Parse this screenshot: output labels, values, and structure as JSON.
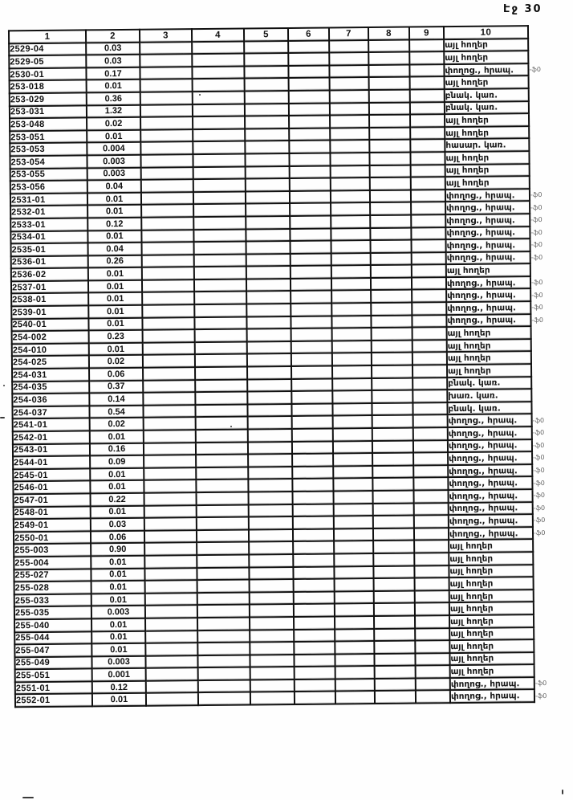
{
  "page": {
    "label": "Էջ 30"
  },
  "colors": {
    "background": "#fefefe",
    "ink": "#101010",
    "grid_border": "#101010",
    "margin_note": "#4a4a4a"
  },
  "table": {
    "columns": [
      "1",
      "2",
      "3",
      "4",
      "5",
      "6",
      "7",
      "8",
      "9",
      "10"
    ],
    "rows": [
      {
        "code": "2529-04",
        "value": "0.03",
        "land_use": "այլ հողեր",
        "margin_note": ""
      },
      {
        "code": "2529-05",
        "value": "0.03",
        "land_use": "այլ հողեր",
        "margin_note": ""
      },
      {
        "code": "2530-01",
        "value": "0.17",
        "land_use": "փողոց., հրապ.",
        "margin_note": "-ֆ0"
      },
      {
        "code": "253-018",
        "value": "0.01",
        "land_use": "այլ հողեր",
        "margin_note": ""
      },
      {
        "code": "253-029",
        "value": "0.36",
        "land_use": "բնակ. կառ.",
        "margin_note": ""
      },
      {
        "code": "253-031",
        "value": "1.32",
        "land_use": "բնակ. կառ.",
        "margin_note": ""
      },
      {
        "code": "253-048",
        "value": "0.02",
        "land_use": "այլ հողեր",
        "margin_note": ""
      },
      {
        "code": "253-051",
        "value": "0.01",
        "land_use": "այլ հողեր",
        "margin_note": ""
      },
      {
        "code": "253-053",
        "value": "0.004",
        "land_use": "հասար. կառ.",
        "margin_note": ""
      },
      {
        "code": "253-054",
        "value": "0.003",
        "land_use": "այլ հողեր",
        "margin_note": ""
      },
      {
        "code": "253-055",
        "value": "0.003",
        "land_use": "այլ հողեր",
        "margin_note": ""
      },
      {
        "code": "253-056",
        "value": "0.04",
        "land_use": "այլ հողեր",
        "margin_note": ""
      },
      {
        "code": "2531-01",
        "value": "0.01",
        "land_use": "փողոց., հրապ.",
        "margin_note": "-ֆ0"
      },
      {
        "code": "2532-01",
        "value": "0.01",
        "land_use": "փողոց., հրապ.",
        "margin_note": "-ֆ0"
      },
      {
        "code": "2533-01",
        "value": "0.12",
        "land_use": "փողոց., հրապ.",
        "margin_note": "-ֆ0"
      },
      {
        "code": "2534-01",
        "value": "0.01",
        "land_use": "փողոց., հրապ.",
        "margin_note": "-ֆ0"
      },
      {
        "code": "2535-01",
        "value": "0.04",
        "land_use": "փողոց., հրապ.",
        "margin_note": "-ֆ0"
      },
      {
        "code": "2536-01",
        "value": "0.26",
        "land_use": "փողոց., հրապ.",
        "margin_note": "-ֆ0"
      },
      {
        "code": "2536-02",
        "value": "0.01",
        "land_use": "այլ հողեր",
        "margin_note": ""
      },
      {
        "code": "2537-01",
        "value": "0.01",
        "land_use": "փողոց., հրապ.",
        "margin_note": "-ֆ0"
      },
      {
        "code": "2538-01",
        "value": "0.01",
        "land_use": "փողոց., հրապ.",
        "margin_note": "-ֆ0"
      },
      {
        "code": "2539-01",
        "value": "0.01",
        "land_use": "փողոց., հրապ.",
        "margin_note": "-ֆ0"
      },
      {
        "code": "2540-01",
        "value": "0.01",
        "land_use": "փողոց., հրապ.",
        "margin_note": "-ֆ0"
      },
      {
        "code": "254-002",
        "value": "0.23",
        "land_use": "այլ հողեր",
        "margin_note": ""
      },
      {
        "code": "254-010",
        "value": "0.01",
        "land_use": "այլ հողեր",
        "margin_note": ""
      },
      {
        "code": "254-025",
        "value": "0.02",
        "land_use": "այլ հողեր",
        "margin_note": ""
      },
      {
        "code": "254-031",
        "value": "0.06",
        "land_use": "այլ հողեր",
        "margin_note": ""
      },
      {
        "code": "254-035",
        "value": "0.37",
        "land_use": "բնակ. կառ.",
        "margin_note": ""
      },
      {
        "code": "254-036",
        "value": "0.14",
        "land_use": "խառ. կառ.",
        "margin_note": ""
      },
      {
        "code": "254-037",
        "value": "0.54",
        "land_use": "բնակ. կառ.",
        "margin_note": ""
      },
      {
        "code": "2541-01",
        "value": "0.02",
        "land_use": "փողոց., հրապ.",
        "margin_note": "-ֆ0"
      },
      {
        "code": "2542-01",
        "value": "0.01",
        "land_use": "փողոց., հրապ.",
        "margin_note": "-ֆ0"
      },
      {
        "code": "2543-01",
        "value": "0.16",
        "land_use": "փողոց., հրապ.",
        "margin_note": "-ֆ0"
      },
      {
        "code": "2544-01",
        "value": "0.09",
        "land_use": "փողոց., հրապ.",
        "margin_note": "-ֆ0"
      },
      {
        "code": "2545-01",
        "value": "0.01",
        "land_use": "փողոց., հրապ.",
        "margin_note": "-ֆ0"
      },
      {
        "code": "2546-01",
        "value": "0.01",
        "land_use": "փողոց., հրապ.",
        "margin_note": "-ֆ0"
      },
      {
        "code": "2547-01",
        "value": "0.22",
        "land_use": "փողոց., հրապ.",
        "margin_note": "-ֆ0"
      },
      {
        "code": "2548-01",
        "value": "0.01",
        "land_use": "փողոց., հրապ.",
        "margin_note": "-ֆ0"
      },
      {
        "code": "2549-01",
        "value": "0.03",
        "land_use": "փողոց., հրապ.",
        "margin_note": "-ֆ0"
      },
      {
        "code": "2550-01",
        "value": "0.06",
        "land_use": "փողոց., հրապ.",
        "margin_note": "-ֆ0"
      },
      {
        "code": "255-003",
        "value": "0.90",
        "land_use": "այլ հողեր",
        "margin_note": ""
      },
      {
        "code": "255-004",
        "value": "0.01",
        "land_use": "այլ հողեր",
        "margin_note": ""
      },
      {
        "code": "255-027",
        "value": "0.01",
        "land_use": "այլ հողեր",
        "margin_note": ""
      },
      {
        "code": "255-028",
        "value": "0.01",
        "land_use": "այլ հողեր",
        "margin_note": ""
      },
      {
        "code": "255-033",
        "value": "0.01",
        "land_use": "այլ հողեր",
        "margin_note": ""
      },
      {
        "code": "255-035",
        "value": "0.003",
        "land_use": "այլ հողեր",
        "margin_note": ""
      },
      {
        "code": "255-040",
        "value": "0.01",
        "land_use": "այլ հողեր",
        "margin_note": ""
      },
      {
        "code": "255-044",
        "value": "0.01",
        "land_use": "այլ հողեր",
        "margin_note": ""
      },
      {
        "code": "255-047",
        "value": "0.01",
        "land_use": "այլ հողեր",
        "margin_note": ""
      },
      {
        "code": "255-049",
        "value": "0.003",
        "land_use": "այլ հողեր",
        "margin_note": ""
      },
      {
        "code": "255-051",
        "value": "0.001",
        "land_use": "այլ հողեր",
        "margin_note": ""
      },
      {
        "code": "2551-01",
        "value": "0.12",
        "land_use": "փողոց., հրապ.",
        "margin_note": "-ֆ0"
      },
      {
        "code": "2552-01",
        "value": "0.01",
        "land_use": "փողոց., հրապ.",
        "margin_note": "-ֆ0"
      }
    ]
  }
}
